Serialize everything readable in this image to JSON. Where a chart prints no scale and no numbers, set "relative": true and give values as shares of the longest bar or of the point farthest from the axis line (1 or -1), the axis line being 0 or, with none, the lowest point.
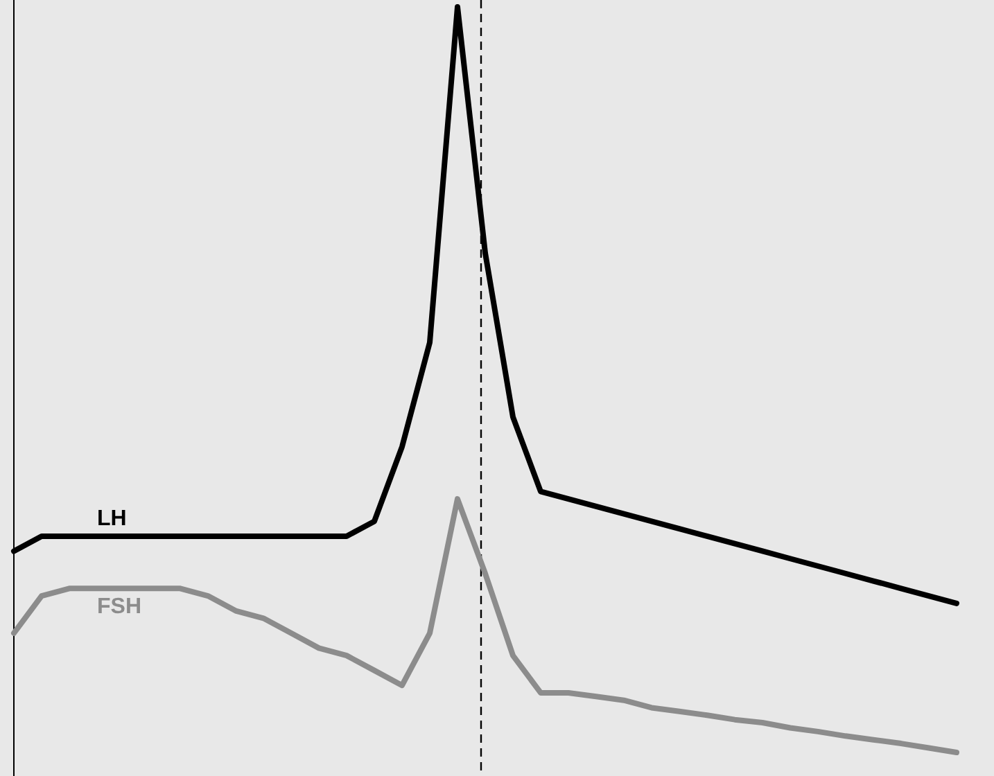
{
  "chart_data": {
    "type": "line",
    "relative": true,
    "categories": [
      null,
      null,
      null,
      null,
      null,
      null,
      null,
      null,
      null,
      null,
      null,
      null,
      null,
      null,
      null,
      null,
      null,
      null,
      null,
      null,
      null,
      null,
      null,
      null,
      null,
      null,
      null,
      null,
      null,
      null,
      null,
      null,
      null,
      null,
      null
    ],
    "series": [
      {
        "name": "LH",
        "color": "#000000",
        "values": [
          0.27,
          0.29,
          0.29,
          0.29,
          0.29,
          0.29,
          0.29,
          0.29,
          0.29,
          0.29,
          0.29,
          0.29,
          0.29,
          0.31,
          0.41,
          0.55,
          1,
          0.67,
          0.45,
          0.35,
          0.34,
          0.33,
          0.32,
          0.31,
          0.3,
          0.29,
          0.28,
          0.27,
          0.26,
          0.25,
          0.24,
          0.23,
          0.22,
          0.21,
          0.2
        ]
      },
      {
        "name": "FSH",
        "color": "#8c8c8c",
        "values": [
          0.16,
          0.21,
          0.22,
          0.22,
          0.22,
          0.22,
          0.22,
          0.21,
          0.19,
          0.18,
          0.16,
          0.14,
          0.13,
          0.11,
          0.09,
          0.16,
          0.34,
          0.24,
          0.13,
          0.08,
          0.08,
          0.075,
          0.07,
          0.06,
          0.055,
          0.05,
          0.044,
          0.04,
          0.033,
          0.028,
          0.022,
          0.017,
          0.012,
          0.006,
          0
        ]
      }
    ],
    "line_style": "solid",
    "marker": "none",
    "legend": false
  }
}
